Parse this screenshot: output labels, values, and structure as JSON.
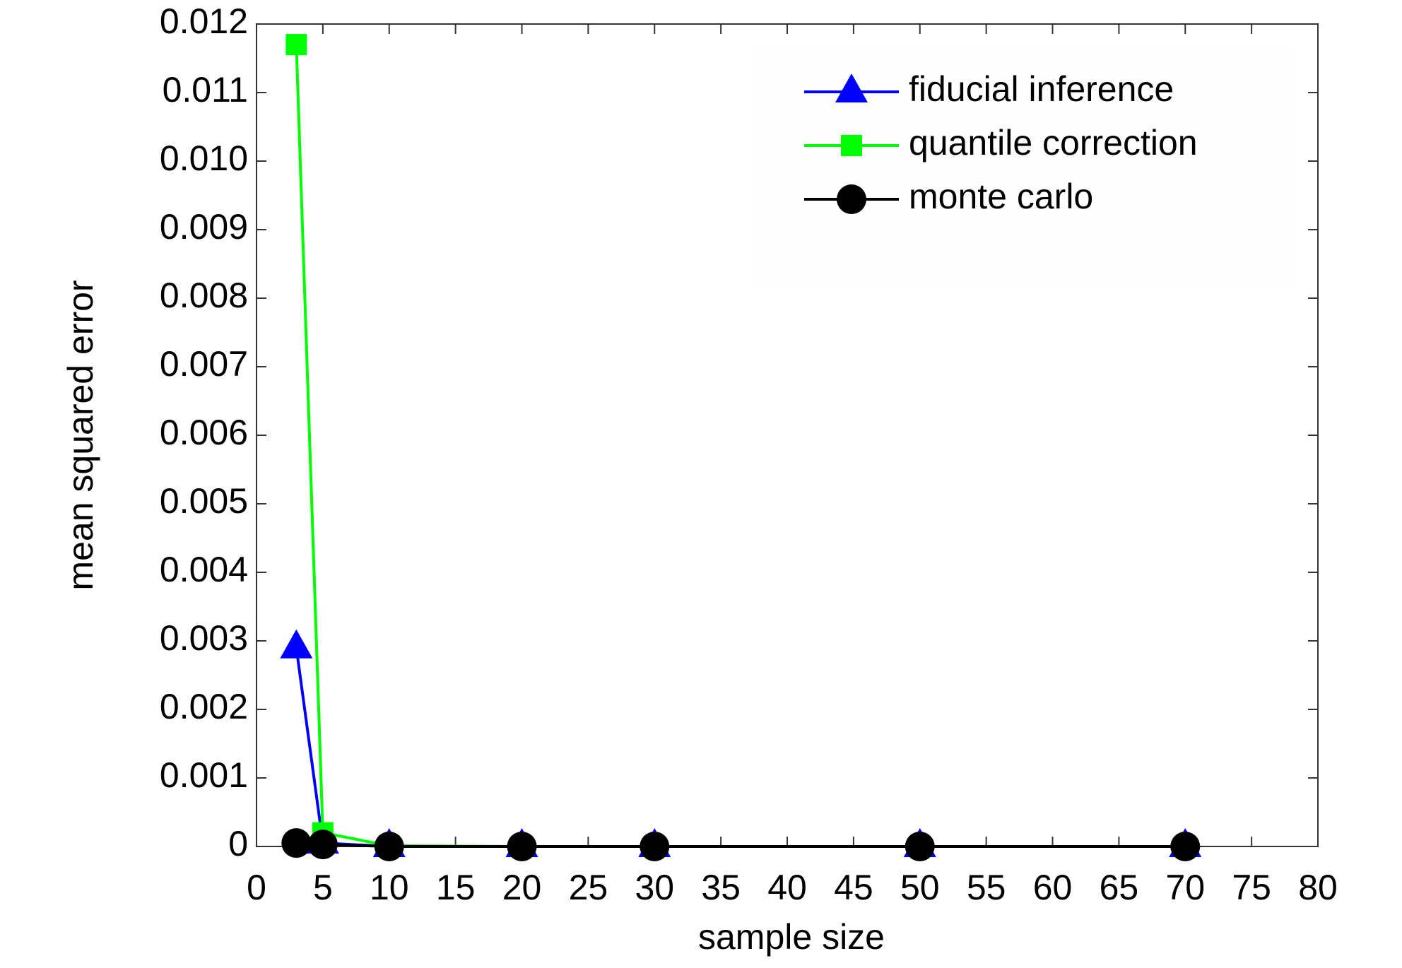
{
  "chart_data": {
    "type": "line",
    "xlabel": "sample size",
    "ylabel": "mean squared error",
    "x": [
      3,
      5,
      10,
      20,
      30,
      50,
      70
    ],
    "series": [
      {
        "name": "fiducial inference",
        "color": "#0000ff",
        "marker": "triangle",
        "values": [
          0.0029,
          5e-05,
          0,
          0,
          0,
          0,
          0
        ]
      },
      {
        "name": "quantile correction",
        "color": "#00ff00",
        "marker": "square",
        "values": [
          0.0117,
          0.0002,
          1e-05,
          0,
          0,
          0,
          0
        ]
      },
      {
        "name": "monte carlo",
        "color": "#000000",
        "marker": "circle",
        "values": [
          5e-05,
          3e-05,
          0,
          0,
          0,
          0,
          0
        ]
      }
    ],
    "xlim": [
      0,
      80
    ],
    "xticks": [
      0,
      5,
      10,
      15,
      20,
      25,
      30,
      35,
      40,
      45,
      50,
      55,
      60,
      65,
      70,
      75,
      80
    ],
    "ylim": [
      0,
      0.012
    ],
    "yticks": [
      0,
      0.001,
      0.002,
      0.003,
      0.004,
      0.005,
      0.006,
      0.007,
      0.008,
      0.009,
      {
        "value": 0.01,
        "label": "0.010"
      },
      0.011,
      0.012
    ],
    "legend": "upper right",
    "grid": false
  }
}
